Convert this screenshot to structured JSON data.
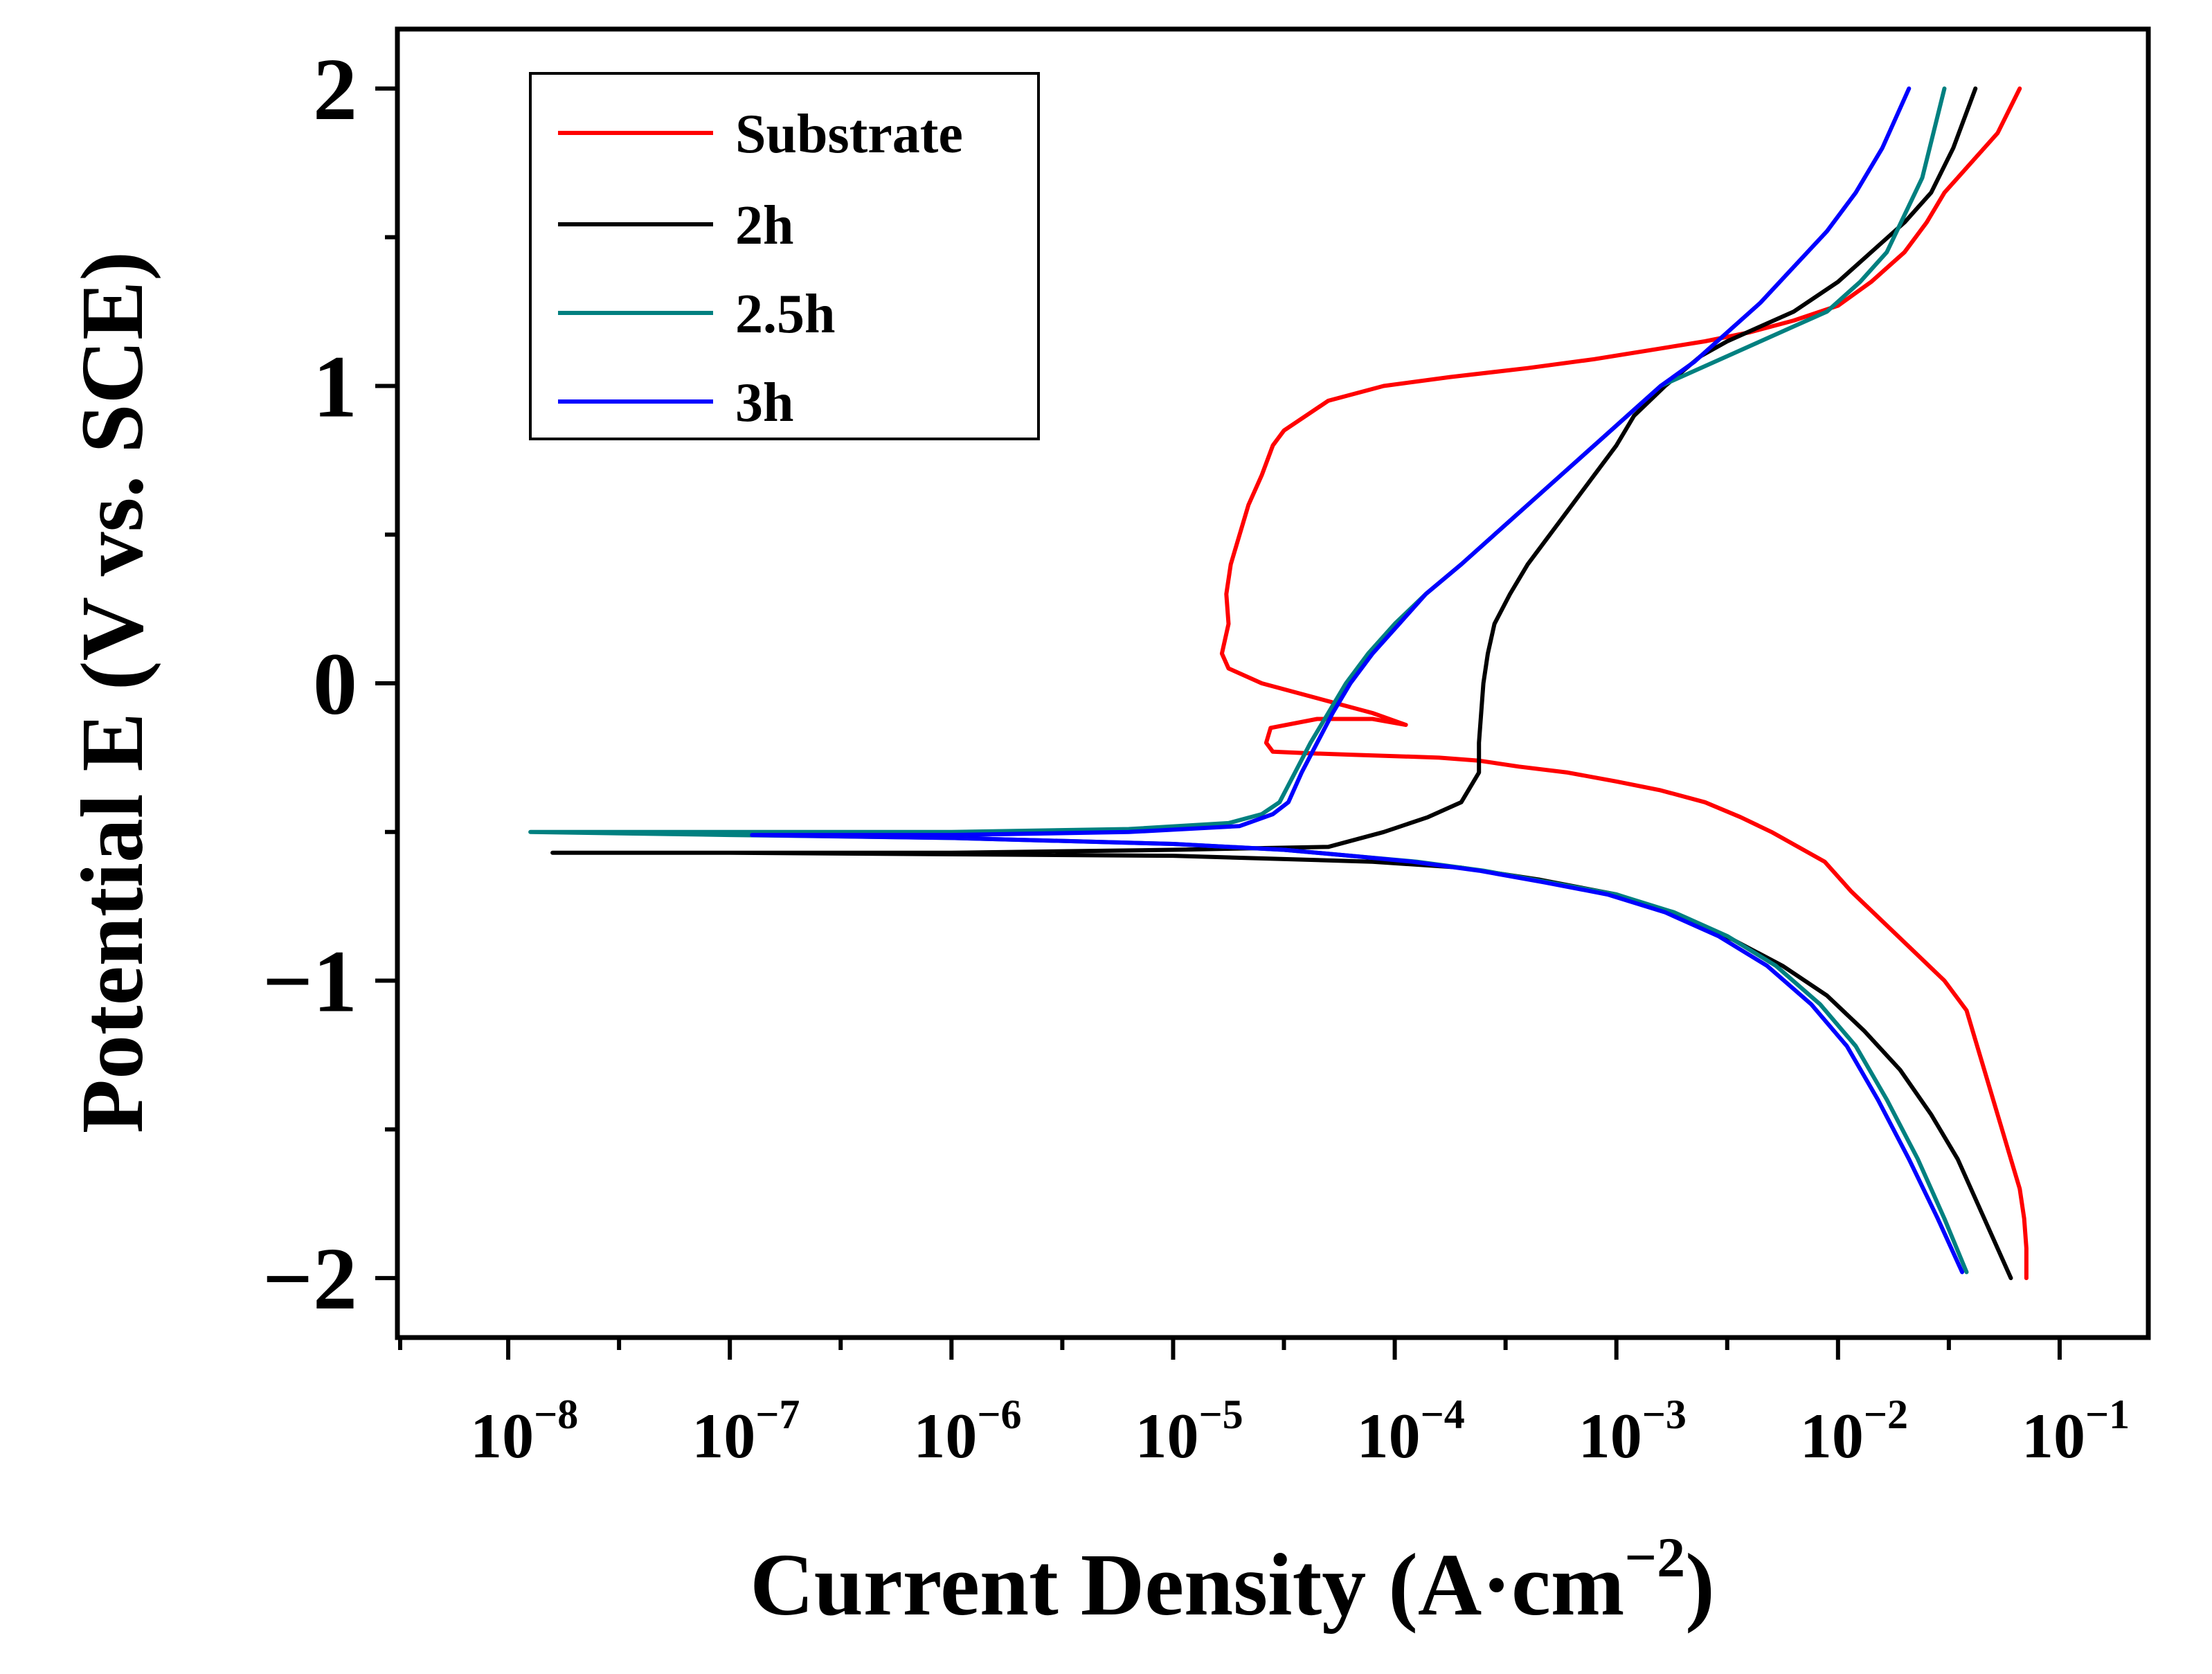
{
  "chart_data": {
    "type": "line",
    "title": "",
    "xlabel": "Current Density (A·cm",
    "xlabel_sup": "−2",
    "xlabel_close": ")",
    "ylabel": "Potential E (V vs. SCE)",
    "x_scale": "log",
    "x_ticks": [
      {
        "base": "10",
        "exp": "−8"
      },
      {
        "base": "10",
        "exp": "−7"
      },
      {
        "base": "10",
        "exp": "−6"
      },
      {
        "base": "10",
        "exp": "−5"
      },
      {
        "base": "10",
        "exp": "−4"
      },
      {
        "base": "10",
        "exp": "−3"
      },
      {
        "base": "10",
        "exp": "−2"
      },
      {
        "base": "10",
        "exp": "−1"
      }
    ],
    "y_ticks": [
      "2",
      "1",
      "0",
      "−1",
      "−2"
    ],
    "xlim_log10": [
      -8.5,
      -0.6
    ],
    "ylim": [
      -2.2,
      2.2
    ],
    "legend_position": "top-left",
    "series": [
      {
        "name": "Substrate",
        "color": "#ff0000",
        "log10_x": [
          -1.15,
          -1.15,
          -1.16,
          -1.18,
          -1.22,
          -1.26,
          -1.3,
          -1.34,
          -1.38,
          -1.42,
          -1.52,
          -1.66,
          -1.8,
          -1.94,
          -2.06,
          -2.18,
          -2.3,
          -2.44,
          -2.6,
          -2.8,
          -3.0,
          -3.22,
          -3.44,
          -3.62,
          -3.8,
          -4.0,
          -4.2,
          -4.4,
          -4.55,
          -4.58,
          -4.56,
          -4.35,
          -4.1,
          -3.95,
          -4.1,
          -4.35,
          -4.6,
          -4.75,
          -4.78,
          -4.75,
          -4.76,
          -4.74,
          -4.7,
          -4.66,
          -4.6,
          -4.55,
          -4.5,
          -4.4,
          -4.3,
          -4.05,
          -3.75,
          -3.4,
          -3.1,
          -2.85,
          -2.6,
          -2.4,
          -2.2,
          -2.0,
          -1.85,
          -1.7,
          -1.6,
          -1.52,
          -1.4,
          -1.28,
          -1.18
        ],
        "y": [
          -2.0,
          -1.9,
          -1.8,
          -1.7,
          -1.6,
          -1.5,
          -1.4,
          -1.3,
          -1.2,
          -1.1,
          -1.0,
          -0.9,
          -0.8,
          -0.7,
          -0.6,
          -0.55,
          -0.5,
          -0.45,
          -0.4,
          -0.36,
          -0.33,
          -0.3,
          -0.28,
          -0.26,
          -0.25,
          -0.245,
          -0.24,
          -0.235,
          -0.23,
          -0.2,
          -0.15,
          -0.12,
          -0.12,
          -0.14,
          -0.1,
          -0.05,
          0.0,
          0.05,
          0.1,
          0.2,
          0.3,
          0.4,
          0.5,
          0.6,
          0.7,
          0.8,
          0.85,
          0.9,
          0.95,
          1.0,
          1.03,
          1.06,
          1.09,
          1.12,
          1.15,
          1.18,
          1.22,
          1.27,
          1.35,
          1.45,
          1.55,
          1.65,
          1.75,
          1.85,
          2.0
        ]
      },
      {
        "name": "2h",
        "color": "#000000",
        "log10_x": [
          -1.22,
          -1.34,
          -1.46,
          -1.58,
          -1.72,
          -1.88,
          -2.05,
          -2.25,
          -2.48,
          -2.72,
          -3.0,
          -3.35,
          -3.7,
          -4.1,
          -5.0,
          -6.0,
          -7.0,
          -7.8,
          -7.0,
          -6.0,
          -5.0,
          -4.3,
          -4.05,
          -3.85,
          -3.7,
          -3.62,
          -3.62,
          -3.61,
          -3.6,
          -3.58,
          -3.55,
          -3.48,
          -3.4,
          -3.3,
          -3.2,
          -3.1,
          -3.0,
          -2.92,
          -2.85,
          -2.78,
          -2.7,
          -2.62,
          -2.5,
          -2.35,
          -2.2,
          -2.0,
          -1.85,
          -1.7,
          -1.58,
          -1.48,
          -1.38
        ],
        "y": [
          -2.0,
          -1.8,
          -1.6,
          -1.45,
          -1.3,
          -1.17,
          -1.05,
          -0.95,
          -0.86,
          -0.78,
          -0.71,
          -0.66,
          -0.62,
          -0.6,
          -0.58,
          -0.575,
          -0.57,
          -0.57,
          -0.57,
          -0.57,
          -0.56,
          -0.55,
          -0.5,
          -0.45,
          -0.4,
          -0.3,
          -0.2,
          -0.1,
          0.0,
          0.1,
          0.2,
          0.3,
          0.4,
          0.5,
          0.6,
          0.7,
          0.8,
          0.9,
          0.95,
          1.0,
          1.05,
          1.1,
          1.15,
          1.2,
          1.25,
          1.35,
          1.45,
          1.55,
          1.65,
          1.8,
          2.0
        ]
      },
      {
        "name": "2.5h",
        "color": "#008080",
        "log10_x": [
          -1.42,
          -1.52,
          -1.64,
          -1.78,
          -1.92,
          -2.08,
          -2.28,
          -2.5,
          -2.74,
          -3.0,
          -3.3,
          -3.6,
          -3.9,
          -4.2,
          -4.5,
          -5.0,
          -6.0,
          -7.0,
          -7.9,
          -7.0,
          -6.0,
          -5.2,
          -4.75,
          -4.6,
          -4.52,
          -4.45,
          -4.38,
          -4.3,
          -4.22,
          -4.12,
          -4.0,
          -3.86,
          -3.7,
          -3.55,
          -3.4,
          -3.25,
          -3.1,
          -2.95,
          -2.8,
          -2.65,
          -2.5,
          -2.35,
          -2.2,
          -2.05,
          -1.9,
          -1.78,
          -1.62,
          -1.52
        ],
        "y": [
          -1.98,
          -1.8,
          -1.6,
          -1.4,
          -1.22,
          -1.08,
          -0.95,
          -0.85,
          -0.77,
          -0.71,
          -0.67,
          -0.63,
          -0.6,
          -0.58,
          -0.56,
          -0.54,
          -0.52,
          -0.51,
          -0.5,
          -0.5,
          -0.5,
          -0.49,
          -0.47,
          -0.44,
          -0.4,
          -0.3,
          -0.2,
          -0.1,
          0.0,
          0.1,
          0.2,
          0.3,
          0.4,
          0.5,
          0.6,
          0.7,
          0.8,
          0.9,
          1.0,
          1.05,
          1.1,
          1.15,
          1.2,
          1.25,
          1.35,
          1.45,
          1.7,
          2.0
        ]
      },
      {
        "name": "3h",
        "color": "#0000ff",
        "log10_x": [
          -1.44,
          -1.55,
          -1.68,
          -1.82,
          -1.96,
          -2.12,
          -2.32,
          -2.54,
          -2.78,
          -3.04,
          -3.32,
          -3.62,
          -3.92,
          -4.2,
          -4.5,
          -5.0,
          -6.0,
          -6.9,
          -6.0,
          -5.2,
          -4.7,
          -4.55,
          -4.48,
          -4.42,
          -4.35,
          -4.28,
          -4.2,
          -4.1,
          -3.98,
          -3.86,
          -3.7,
          -3.55,
          -3.4,
          -3.25,
          -3.1,
          -2.95,
          -2.8,
          -2.65,
          -2.5,
          -2.35,
          -2.2,
          -2.05,
          -1.92,
          -1.8,
          -1.68
        ],
        "y": [
          -1.98,
          -1.8,
          -1.6,
          -1.4,
          -1.22,
          -1.08,
          -0.95,
          -0.85,
          -0.77,
          -0.71,
          -0.67,
          -0.63,
          -0.6,
          -0.58,
          -0.56,
          -0.54,
          -0.52,
          -0.51,
          -0.51,
          -0.5,
          -0.48,
          -0.44,
          -0.4,
          -0.3,
          -0.2,
          -0.1,
          0.0,
          0.1,
          0.2,
          0.3,
          0.4,
          0.5,
          0.6,
          0.7,
          0.8,
          0.9,
          1.0,
          1.08,
          1.18,
          1.28,
          1.4,
          1.52,
          1.65,
          1.8,
          2.0
        ]
      }
    ]
  }
}
